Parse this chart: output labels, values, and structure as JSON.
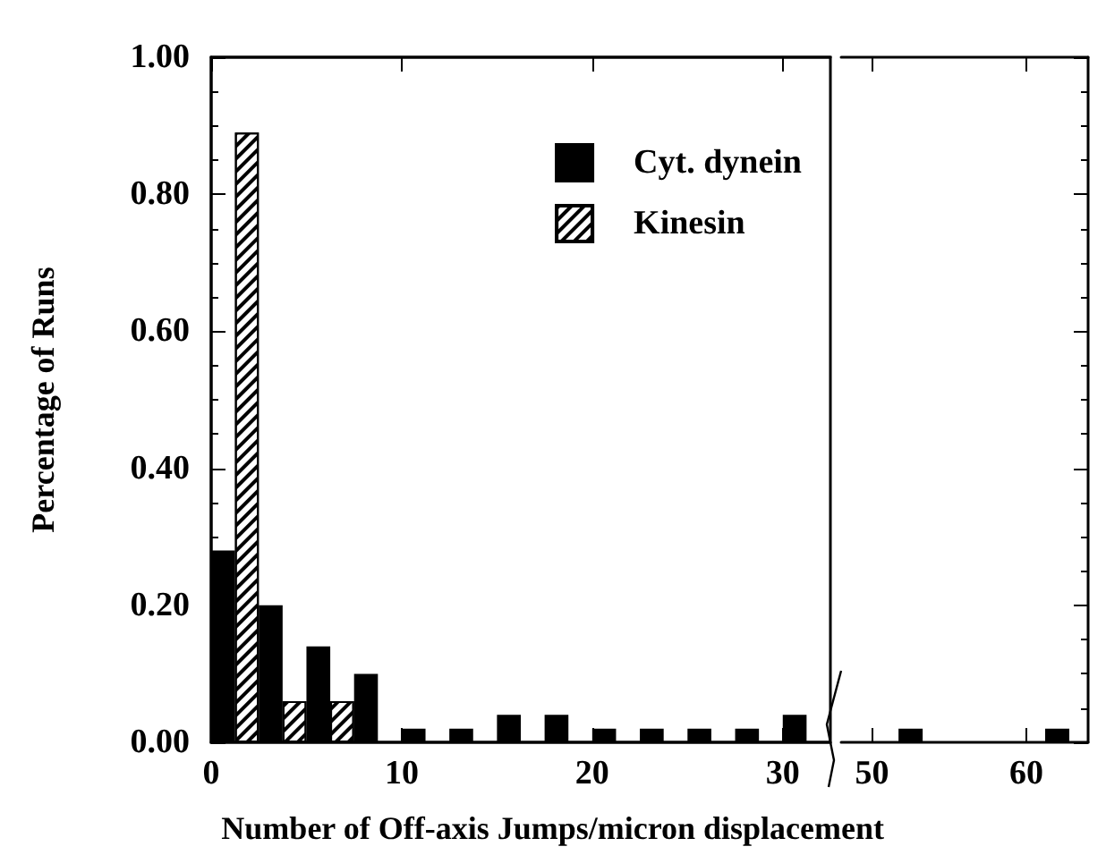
{
  "chart_data": [
    {
      "type": "bar",
      "xlabel": "Number of Off-axis Jumps/micron displacement",
      "ylabel": "Percentage of Runs",
      "x": [
        1.25,
        3.75,
        6.25,
        8.75,
        11.25,
        13.75,
        16.25,
        18.75,
        21.25,
        23.75,
        26.25,
        28.75,
        31.25
      ],
      "series": [
        {
          "name": "Cyt. dynein",
          "color": "#000000",
          "values": [
            0.28,
            0.2,
            0.14,
            0.1,
            0.02,
            0.02,
            0.04,
            0.04,
            0.02,
            0.02,
            0.02,
            0.02,
            0.04
          ]
        },
        {
          "name": "Kinesin",
          "color": "#ffffff",
          "values": [
            0.89,
            0.06,
            0.06,
            null,
            null,
            null,
            null,
            null,
            null,
            null,
            null,
            null,
            null
          ]
        }
      ],
      "xlim": [
        0,
        32.5
      ],
      "xticks": [
        0,
        10,
        20,
        30
      ],
      "ylim": [
        0,
        1
      ],
      "yticks": [
        {
          "value": 0,
          "label": "0.00"
        },
        {
          "value": 0.2,
          "label": "0.20"
        },
        {
          "value": 0.4,
          "label": "0.40"
        },
        {
          "value": 0.6,
          "label": "0.60"
        },
        {
          "value": 0.8,
          "label": "0.80"
        },
        {
          "value": 1,
          "label": "1.00"
        }
      ],
      "legend": "top right"
    },
    {
      "type": "bar",
      "x": [
        52.5,
        62
      ],
      "series": [
        {
          "color": "#000000",
          "values": [
            0.02,
            0.02
          ]
        }
      ],
      "xlim": [
        48,
        64
      ],
      "xticks": [
        50,
        60
      ],
      "ylim": [
        0,
        1
      ],
      "yticks": [
        0,
        0.2,
        0.4,
        0.6,
        0.8,
        1
      ],
      "tick_labels": "x"
    }
  ]
}
